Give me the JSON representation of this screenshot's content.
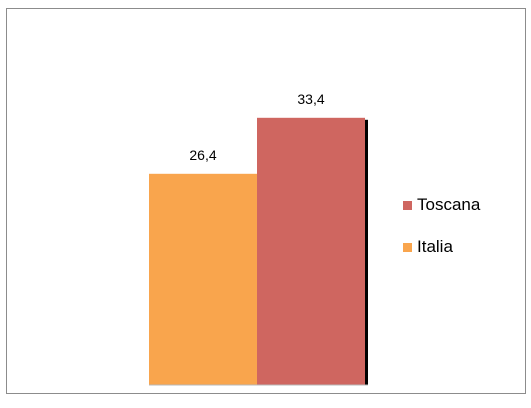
{
  "chart_data": {
    "type": "bar",
    "categories": [
      ""
    ],
    "series": [
      {
        "name": "Italia",
        "values": [
          26.4
        ],
        "color": "#f9a54d"
      },
      {
        "name": "Toscana",
        "values": [
          33.4
        ],
        "color": "#cf6660"
      }
    ],
    "data_labels": [
      "26,4",
      "33,4"
    ],
    "ylim": [
      0,
      40
    ],
    "grid": false,
    "legend": {
      "placement": "right",
      "items": [
        {
          "label": "Toscana",
          "color": "#cf6660"
        },
        {
          "label": "Italia",
          "color": "#f9a54d"
        }
      ]
    }
  }
}
